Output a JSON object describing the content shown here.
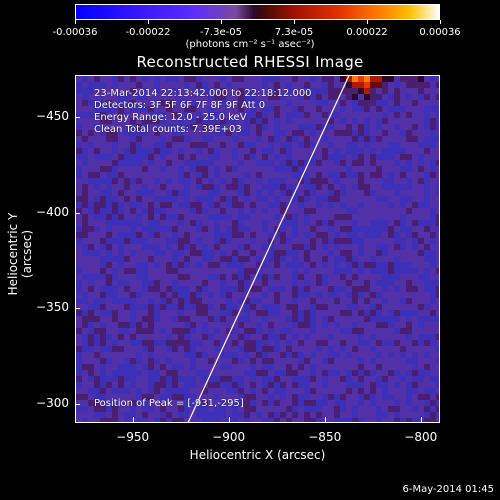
{
  "colorbar": {
    "ticks": [
      "-0.00036",
      "-0.00022",
      "-7.3e-05",
      "7.3e-05",
      "0.00022",
      "0.00036"
    ],
    "unit_label": "(photons cm⁻² s⁻¹ asec⁻²)"
  },
  "title": "Reconstructed RHESSI Image",
  "info": {
    "line1": "23-Mar-2014 22:13:42.000 to 22:18:12.000",
    "line2": "Detectors: 3F 5F 6F 7F 8F 9F  Att 0",
    "line3": "Energy Range: 12.0 - 25.0 keV",
    "line4": "Clean      Total counts: 7.39E+03",
    "peak": "Position of Peak = [-931,-295]"
  },
  "axes": {
    "x_title": "Heliocentric X (arcsec)",
    "y_title": "Heliocentric Y (arcsec)",
    "xlim": [
      -980,
      -790
    ],
    "ylim": [
      -472,
      -290
    ],
    "x_ticks": [
      -950,
      -900,
      -850,
      -800
    ],
    "y_ticks": [
      -300,
      -350,
      -400,
      -450
    ],
    "x_tick_labels": [
      "−950",
      "−900",
      "−850",
      "−800"
    ],
    "y_tick_labels": [
      "−300",
      "−350",
      "−400",
      "−450"
    ]
  },
  "limb_line": {
    "x1": -922,
    "y1": -290,
    "x2": -838,
    "y2": -472
  },
  "colors": {
    "low": "#2020d0",
    "mid": "#5a2a9a",
    "hot": "#ff3000",
    "peak": "#ffd040"
  },
  "timestamp": "6-May-2014 01:45"
}
